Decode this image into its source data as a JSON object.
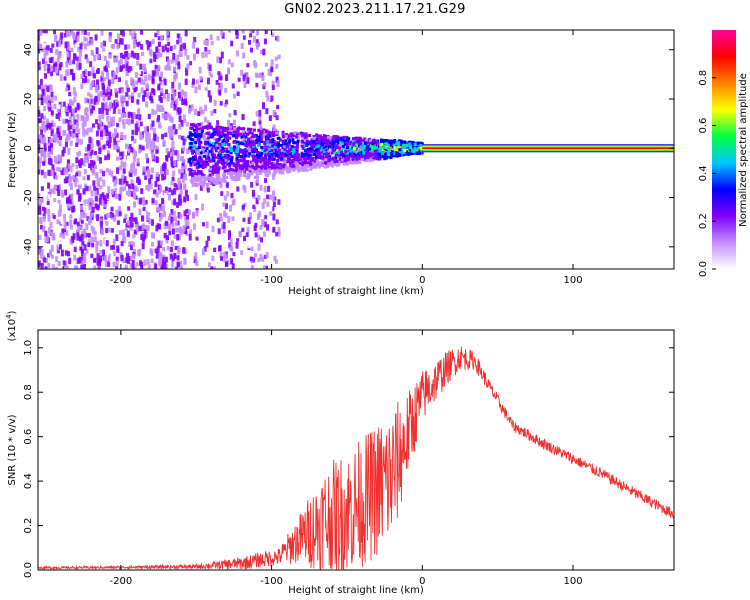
{
  "title": "GN02.2023.211.17.21.G29",
  "chart_data": [
    {
      "type": "heatmap",
      "xlabel": "Height of straight line (km)",
      "ylabel": "Frequency (Hz)",
      "xlim": [
        -255,
        167
      ],
      "ylim": [
        -49,
        48
      ],
      "x_ticks": [
        -200,
        -100,
        0,
        100
      ],
      "x_tick_labels": [
        "-200",
        "-100",
        "0",
        "100"
      ],
      "y_ticks": [
        -40,
        -20,
        0,
        20,
        40
      ],
      "y_tick_labels": [
        "-40",
        "-20",
        "0",
        "20",
        "40"
      ],
      "colorbar": {
        "label": "Normalized spectral amplitude",
        "range": [
          0,
          1
        ],
        "ticks": [
          0.0,
          0.2,
          0.4,
          0.6,
          0.8
        ],
        "tick_labels": [
          "0.0",
          "0.2",
          "0.4",
          "0.6",
          "0.8"
        ],
        "colors": [
          "#ffffff",
          "#c38cff",
          "#8000ff",
          "#0000ff",
          "#00c8ff",
          "#00ff40",
          "#ffff00",
          "#ff8000",
          "#ff0000",
          "#ff00a0"
        ]
      },
      "features": {
        "noise_region_x": [
          -255,
          -95
        ],
        "converging_band_x": [
          -155,
          0
        ],
        "steady_line_x": [
          0,
          167
        ],
        "steady_line_frequency": 0
      }
    },
    {
      "type": "line",
      "xlabel": "Height of straight line (km)",
      "ylabel": "SNR (10 * v/v)",
      "y_multiplier_label": "(x10",
      "y_multiplier_exp": "4",
      "xlim": [
        -255,
        167
      ],
      "ylim": [
        0,
        1.08
      ],
      "x_ticks": [
        -200,
        -100,
        0,
        100
      ],
      "x_tick_labels": [
        "-200",
        "-100",
        "0",
        "100"
      ],
      "y_ticks": [
        0.0,
        0.2,
        0.4,
        0.6,
        0.8,
        1.0
      ],
      "y_tick_labels": [
        "0.0",
        "0.2",
        "0.4",
        "0.6",
        "0.8",
        "1.0"
      ],
      "color": "#f03030",
      "envelope": {
        "x": [
          -255,
          -200,
          -150,
          -120,
          -95,
          -80,
          -65,
          -50,
          -35,
          -20,
          -10,
          0,
          15,
          25,
          35,
          45,
          60,
          80,
          100,
          120,
          140,
          167
        ],
        "mid": [
          0.01,
          0.012,
          0.015,
          0.03,
          0.06,
          0.15,
          0.22,
          0.26,
          0.33,
          0.42,
          0.6,
          0.78,
          0.9,
          0.96,
          0.94,
          0.82,
          0.65,
          0.57,
          0.5,
          0.43,
          0.35,
          0.25
        ],
        "spread": [
          0.005,
          0.006,
          0.01,
          0.03,
          0.04,
          0.12,
          0.25,
          0.28,
          0.3,
          0.32,
          0.2,
          0.12,
          0.08,
          0.06,
          0.04,
          0.03,
          0.025,
          0.025,
          0.025,
          0.025,
          0.025,
          0.025
        ]
      }
    }
  ]
}
